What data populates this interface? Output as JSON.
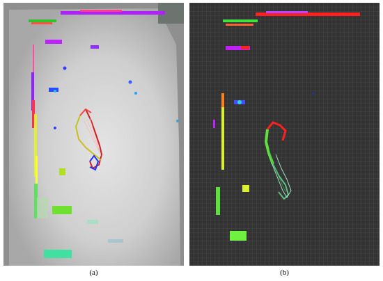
{
  "figure": {
    "panels": [
      {
        "id": "a",
        "caption": "(a)",
        "style": "point-cloud map over grayscale occupancy background"
      },
      {
        "id": "b",
        "caption": "(b)",
        "style": "point-cloud map over dark grid background"
      }
    ],
    "colors": {
      "panel_a_background": "#c9c9c9",
      "panel_b_background": "#333333",
      "grid_line": "#555555",
      "magenta": "#c000ff",
      "red": "#ff2020",
      "yellow_green": "#d8f030",
      "green": "#50e040",
      "blue": "#1a3cff",
      "cyan": "#30d0d0"
    }
  }
}
